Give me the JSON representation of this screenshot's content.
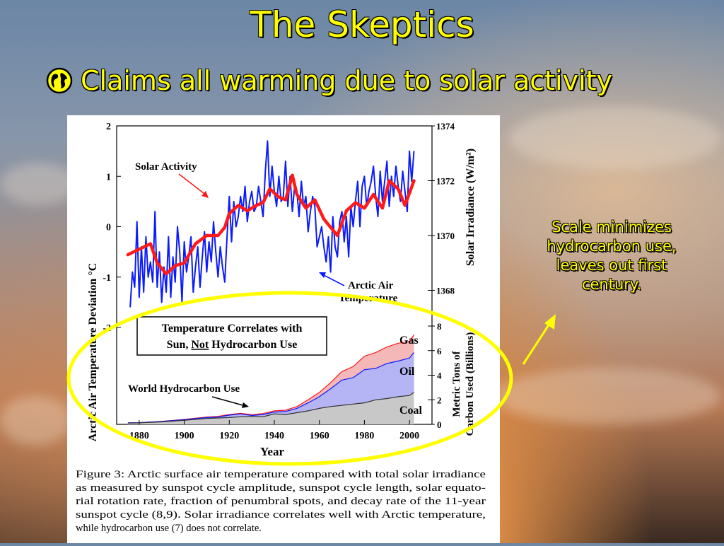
{
  "slide": {
    "title": "The Skeptics",
    "bullet": "Claims all warming due to solar activity",
    "note": "Scale minimizes hydrocarbon use, leaves out first century."
  },
  "colors": {
    "text_yellow": "#ffff00",
    "solar_red": "#ff1a1a",
    "arctic_blue": "#0b1bff",
    "gas_fill": "#f5b8b8",
    "oil_fill": "#b5b5f5",
    "coal_fill": "#c8c8c8"
  },
  "figure": {
    "left_axis_title": "Arctic Air Temperature Deviation °C",
    "right_axis_title": "Solar Irradiance (W/m²)",
    "lower_right_axis_title_lines": [
      "Metric Tons of",
      "Carbon Used (Billions)"
    ],
    "x_axis_title": "Year",
    "label_solar": "Solar Activity",
    "label_arctic_lines": [
      "Arctic Air",
      "Temperature"
    ],
    "label_hydro": "World Hydrocarbon Use",
    "box_lines": [
      "Temperature Correlates with",
      "Sun, Not Hydrocarbon Use"
    ],
    "fuel_labels": [
      "Gas",
      "Oil",
      "Coal"
    ],
    "caption_lines": [
      "Figure 3: Arctic surface air temperature compared with total solar irradiance",
      "as measured by sunspot cycle amplitude, sunspot cycle length, solar equato-",
      "rial rotation rate, fraction of penumbral spots, and decay rate of the 11-year",
      "sunspot cycle (8,9). Solar irradiance correlates well with Arctic temperature,",
      "while hydrocarbon use (7) does not correlate."
    ]
  },
  "chart_data": {
    "type": "line",
    "xlabel": "Year",
    "x_ticks": [
      1880,
      1900,
      1920,
      1940,
      1960,
      1980,
      2000
    ],
    "xlim": [
      1870,
      2010
    ],
    "left_axis": {
      "ticks": [
        2,
        1,
        0,
        -1,
        -2
      ],
      "ylim": [
        -2,
        2
      ]
    },
    "right_axis": {
      "ticks": [
        1374,
        1372,
        1370,
        1368
      ],
      "ylim": [
        1366.3,
        1374
      ]
    },
    "lower_axis": {
      "ticks": [
        8,
        6,
        4,
        2,
        0
      ],
      "ylim": [
        0,
        8
      ]
    },
    "series": [
      {
        "name": "Arctic Air Temperature",
        "axis": "left",
        "x": [
          1876,
          1877,
          1878,
          1879,
          1880,
          1881,
          1882,
          1883,
          1884,
          1885,
          1886,
          1887,
          1888,
          1889,
          1890,
          1891,
          1892,
          1893,
          1894,
          1895,
          1896,
          1897,
          1898,
          1899,
          1900,
          1901,
          1902,
          1903,
          1904,
          1905,
          1906,
          1907,
          1908,
          1909,
          1910,
          1911,
          1912,
          1913,
          1914,
          1915,
          1916,
          1917,
          1918,
          1919,
          1920,
          1921,
          1922,
          1923,
          1924,
          1925,
          1926,
          1927,
          1928,
          1929,
          1930,
          1931,
          1932,
          1933,
          1934,
          1935,
          1936,
          1937,
          1938,
          1939,
          1940,
          1941,
          1942,
          1943,
          1944,
          1945,
          1946,
          1947,
          1948,
          1949,
          1950,
          1951,
          1952,
          1953,
          1954,
          1955,
          1956,
          1957,
          1958,
          1959,
          1960,
          1961,
          1962,
          1963,
          1964,
          1965,
          1966,
          1967,
          1968,
          1969,
          1970,
          1971,
          1972,
          1973,
          1974,
          1975,
          1976,
          1977,
          1978,
          1979,
          1980,
          1981,
          1982,
          1983,
          1984,
          1985,
          1986,
          1987,
          1988,
          1989,
          1990,
          1991,
          1992,
          1993,
          1994,
          1995,
          1996,
          1997,
          1998,
          1999,
          2000,
          2001,
          2002
        ],
        "values": [
          -1.6,
          -0.9,
          -1.2,
          0.1,
          -1.4,
          -0.4,
          -1.3,
          -0.2,
          -1.0,
          -0.7,
          -1.1,
          0.3,
          -1.2,
          -0.5,
          -1.5,
          -0.8,
          -1.3,
          -0.2,
          -1.4,
          -0.6,
          -1.1,
          0.0,
          -0.5,
          -1.5,
          -0.3,
          -0.9,
          -0.6,
          -0.2,
          -1.3,
          -0.8,
          -0.4,
          -1.2,
          -0.6,
          -0.1,
          -0.9,
          -0.3,
          -0.7,
          0.1,
          -0.5,
          -1.0,
          -0.4,
          -0.8,
          -1.1,
          -0.2,
          0.6,
          -0.3,
          0.5,
          0.0,
          0.2,
          0.6,
          0.3,
          0.8,
          0.1,
          0.5,
          0.7,
          0.3,
          0.4,
          0.8,
          0.5,
          0.2,
          1.1,
          1.7,
          0.6,
          1.2,
          0.7,
          0.4,
          1.0,
          0.5,
          0.6,
          1.3,
          0.4,
          1.0,
          0.3,
          0.8,
          0.7,
          0.2,
          0.9,
          0.4,
          0.6,
          -0.1,
          0.3,
          0.6,
          0.4,
          -0.4,
          -0.2,
          0.0,
          -0.4,
          -0.7,
          -0.2,
          -0.9,
          0.2,
          -0.4,
          -0.6,
          0.1,
          0.3,
          -0.3,
          0.2,
          -0.6,
          0.4,
          0.0,
          0.5,
          0.9,
          0.0,
          0.8,
          1.0,
          0.4,
          0.7,
          0.9,
          1.2,
          0.6,
          0.2,
          1.1,
          0.5,
          0.9,
          1.3,
          0.4,
          1.0,
          0.6,
          1.2,
          0.8,
          0.5,
          1.1,
          0.7,
          0.3,
          1.5,
          0.9,
          1.5
        ]
      },
      {
        "name": "Solar Activity",
        "axis": "right",
        "x": [
          1875,
          1880,
          1885,
          1888,
          1892,
          1896,
          1900,
          1905,
          1910,
          1915,
          1918,
          1920,
          1924,
          1928,
          1932,
          1935,
          1938,
          1942,
          1945,
          1948,
          1950,
          1954,
          1958,
          1962,
          1965,
          1968,
          1972,
          1976,
          1980,
          1984,
          1988,
          1991,
          1995,
          1998,
          2002
        ],
        "values": [
          1369.3,
          1369.5,
          1369.7,
          1369.0,
          1368.6,
          1368.9,
          1369.0,
          1369.7,
          1370.0,
          1370.0,
          1370.3,
          1370.8,
          1371.1,
          1370.9,
          1371.1,
          1371.2,
          1371.7,
          1371.4,
          1371.3,
          1372.2,
          1371.5,
          1371.0,
          1371.3,
          1370.6,
          1370.3,
          1370.0,
          1370.9,
          1371.2,
          1371.0,
          1371.5,
          1371.0,
          1372.0,
          1371.7,
          1371.1,
          1372.0
        ]
      },
      {
        "name": "Coal",
        "axis": "lower",
        "x": [
          1875,
          1880,
          1890,
          1900,
          1910,
          1915,
          1920,
          1925,
          1930,
          1935,
          1940,
          1945,
          1950,
          1955,
          1960,
          1965,
          1970,
          1975,
          1980,
          1985,
          1990,
          1995,
          2000,
          2002
        ],
        "values": [
          0.1,
          0.12,
          0.2,
          0.33,
          0.48,
          0.52,
          0.55,
          0.62,
          0.65,
          0.62,
          0.85,
          0.8,
          0.95,
          1.1,
          1.3,
          1.45,
          1.55,
          1.65,
          1.75,
          2.0,
          2.1,
          2.25,
          2.35,
          2.6
        ]
      },
      {
        "name": "Oil",
        "axis": "lower",
        "x": [
          1875,
          1880,
          1890,
          1900,
          1910,
          1915,
          1920,
          1925,
          1930,
          1935,
          1940,
          1945,
          1950,
          1955,
          1960,
          1965,
          1970,
          1975,
          1980,
          1985,
          1990,
          1995,
          2000,
          2002
        ],
        "values": [
          0.12,
          0.14,
          0.24,
          0.38,
          0.55,
          0.6,
          0.75,
          0.85,
          0.72,
          0.8,
          1.0,
          1.05,
          1.3,
          1.75,
          2.25,
          2.9,
          3.6,
          3.8,
          4.45,
          4.55,
          4.95,
          5.15,
          5.4,
          5.85
        ]
      },
      {
        "name": "Gas",
        "axis": "lower",
        "x": [
          1875,
          1880,
          1890,
          1900,
          1910,
          1915,
          1920,
          1925,
          1930,
          1935,
          1940,
          1945,
          1950,
          1955,
          1960,
          1965,
          1970,
          1975,
          1980,
          1985,
          1990,
          1995,
          2000,
          2002
        ],
        "values": [
          0.12,
          0.14,
          0.25,
          0.4,
          0.6,
          0.65,
          0.8,
          0.9,
          0.78,
          0.88,
          1.1,
          1.15,
          1.45,
          2.0,
          2.6,
          3.4,
          4.3,
          4.7,
          5.55,
          5.85,
          6.3,
          6.6,
          6.75,
          7.3
        ]
      }
    ]
  }
}
